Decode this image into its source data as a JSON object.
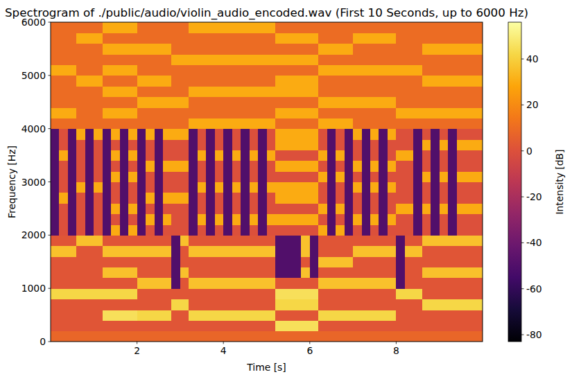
{
  "chart_data": {
    "type": "heatmap",
    "title": "Spectrogram of ./public/audio/violin_audio_encoded.wav (First 10 Seconds, up to 6000 Hz)",
    "x_label": "Time [s]",
    "y_label": "Frequency [Hz]",
    "xlim": [
      0,
      10
    ],
    "xticks": [
      2,
      4,
      6,
      8
    ],
    "ylim": [
      0,
      6000
    ],
    "yticks": [
      0,
      1000,
      2000,
      3000,
      4000,
      5000,
      6000
    ],
    "grid": false,
    "x_bins": [
      0,
      0.2,
      0.4,
      0.6,
      0.8,
      1,
      1.2,
      1.4,
      1.6,
      1.8,
      2,
      2.2,
      2.4,
      2.6,
      2.8,
      3,
      3.2,
      3.4,
      3.6,
      3.8,
      4,
      4.2,
      4.4,
      4.6,
      4.8,
      5,
      5.2,
      5.4,
      5.6,
      5.8,
      6,
      6.2,
      6.4,
      6.6,
      6.8,
      7,
      7.2,
      7.4,
      7.6,
      7.8,
      8,
      8.2,
      8.4,
      8.6,
      8.8,
      9,
      9.2,
      9.4,
      9.6,
      9.8,
      10
    ],
    "y_bins": [
      0,
      200,
      400,
      600,
      800,
      1000,
      1200,
      1400,
      1600,
      1800,
      2000,
      2200,
      2400,
      2600,
      2800,
      3000,
      3200,
      3400,
      3600,
      3800,
      4000,
      4200,
      4400,
      4600,
      4800,
      5000,
      5200,
      5400,
      5600,
      5800,
      6000
    ],
    "cells": [
      [
        8,
        8,
        8,
        8,
        8,
        8,
        8,
        8,
        8,
        8,
        8,
        8,
        8,
        8,
        8,
        8,
        8,
        8,
        8,
        8,
        8,
        8,
        8,
        8,
        8,
        8,
        8,
        8,
        8,
        8,
        8,
        8,
        8,
        8,
        8,
        8,
        8,
        8,
        8,
        8,
        8,
        8,
        8,
        8,
        8,
        8,
        8,
        8,
        8,
        8
      ],
      [
        2,
        2,
        2,
        2,
        2,
        2,
        2,
        2,
        2,
        2,
        2,
        2,
        2,
        2,
        2,
        2,
        2,
        2,
        2,
        2,
        2,
        2,
        2,
        2,
        2,
        2,
        45,
        45,
        45,
        45,
        45,
        2,
        2,
        2,
        2,
        2,
        2,
        2,
        2,
        2,
        2,
        2,
        2,
        2,
        2,
        2,
        2,
        2,
        2,
        2
      ],
      [
        2,
        2,
        2,
        2,
        2,
        2,
        45,
        45,
        45,
        45,
        42,
        42,
        42,
        42,
        2,
        2,
        42,
        42,
        42,
        42,
        42,
        42,
        42,
        42,
        42,
        42,
        2,
        2,
        2,
        2,
        2,
        42,
        42,
        42,
        42,
        42,
        42,
        42,
        42,
        42,
        2,
        2,
        2,
        2,
        2,
        2,
        2,
        2,
        2,
        2
      ],
      [
        2,
        2,
        2,
        2,
        2,
        2,
        2,
        2,
        2,
        2,
        2,
        2,
        2,
        2,
        42,
        42,
        2,
        2,
        2,
        2,
        2,
        2,
        2,
        2,
        2,
        2,
        42,
        42,
        42,
        42,
        42,
        2,
        2,
        2,
        2,
        2,
        2,
        2,
        2,
        2,
        2,
        2,
        2,
        42,
        42,
        42,
        42,
        42,
        42,
        42
      ],
      [
        42,
        42,
        42,
        42,
        42,
        42,
        42,
        42,
        42,
        42,
        2,
        2,
        2,
        2,
        2,
        2,
        2,
        2,
        2,
        2,
        2,
        2,
        2,
        2,
        2,
        2,
        45,
        45,
        45,
        45,
        45,
        2,
        2,
        2,
        2,
        2,
        2,
        2,
        2,
        2,
        42,
        42,
        42,
        2,
        2,
        2,
        2,
        2,
        2,
        2
      ],
      [
        2,
        2,
        2,
        2,
        2,
        2,
        2,
        2,
        2,
        2,
        36,
        36,
        36,
        36,
        -50,
        2,
        36,
        36,
        36,
        36,
        36,
        36,
        36,
        36,
        36,
        36,
        2,
        2,
        2,
        2,
        2,
        36,
        36,
        36,
        36,
        36,
        36,
        36,
        36,
        36,
        -50,
        2,
        2,
        2,
        2,
        2,
        2,
        2,
        2,
        2
      ],
      [
        2,
        2,
        2,
        2,
        2,
        2,
        36,
        36,
        36,
        36,
        2,
        2,
        2,
        2,
        -50,
        36,
        2,
        2,
        2,
        2,
        2,
        2,
        2,
        2,
        2,
        2,
        -50,
        -50,
        -50,
        36,
        -50,
        2,
        2,
        2,
        2,
        2,
        2,
        2,
        2,
        2,
        -50,
        2,
        2,
        36,
        36,
        36,
        36,
        36,
        36,
        36
      ],
      [
        2,
        2,
        2,
        2,
        2,
        2,
        2,
        2,
        2,
        2,
        2,
        2,
        2,
        2,
        -50,
        2,
        2,
        2,
        2,
        2,
        2,
        2,
        2,
        2,
        2,
        2,
        -50,
        -50,
        -50,
        2,
        -50,
        36,
        36,
        36,
        36,
        2,
        2,
        2,
        2,
        2,
        -50,
        2,
        2,
        2,
        2,
        2,
        2,
        2,
        2,
        2
      ],
      [
        36,
        36,
        36,
        2,
        2,
        2,
        36,
        36,
        36,
        36,
        36,
        36,
        36,
        36,
        -50,
        2,
        36,
        36,
        36,
        36,
        36,
        36,
        36,
        36,
        36,
        36,
        -50,
        -50,
        -50,
        36,
        -50,
        2,
        2,
        2,
        2,
        36,
        36,
        36,
        36,
        36,
        -50,
        36,
        36,
        2,
        2,
        2,
        2,
        2,
        2,
        2
      ],
      [
        2,
        2,
        2,
        36,
        36,
        36,
        2,
        2,
        2,
        2,
        2,
        2,
        2,
        2,
        -50,
        36,
        2,
        2,
        2,
        2,
        2,
        2,
        2,
        2,
        2,
        2,
        -50,
        -50,
        -50,
        36,
        -50,
        2,
        2,
        2,
        2,
        2,
        2,
        2,
        2,
        2,
        -50,
        2,
        2,
        36,
        36,
        36,
        36,
        36,
        36,
        36
      ],
      [
        -50,
        0,
        -50,
        0,
        -50,
        0,
        -50,
        30,
        -50,
        30,
        -50,
        0,
        -50,
        0,
        0,
        0,
        -50,
        0,
        -50,
        0,
        -50,
        0,
        -50,
        0,
        -50,
        0,
        0,
        0,
        0,
        0,
        0,
        30,
        -50,
        30,
        -50,
        0,
        -50,
        0,
        -50,
        0,
        0,
        0,
        -50,
        0,
        -50,
        0,
        -50,
        0,
        0,
        0
      ],
      [
        -50,
        0,
        -50,
        0,
        -50,
        0,
        -50,
        0,
        -50,
        0,
        -50,
        30,
        -50,
        30,
        0,
        0,
        -50,
        30,
        -50,
        30,
        -50,
        30,
        -50,
        30,
        -50,
        30,
        30,
        30,
        30,
        30,
        30,
        0,
        -50,
        0,
        -50,
        30,
        -50,
        30,
        -50,
        30,
        0,
        0,
        -50,
        0,
        -50,
        0,
        -50,
        0,
        0,
        0
      ],
      [
        -50,
        0,
        -50,
        0,
        -50,
        0,
        -50,
        30,
        -50,
        30,
        -50,
        0,
        -50,
        0,
        0,
        0,
        -50,
        0,
        -50,
        0,
        -50,
        0,
        -50,
        0,
        -50,
        0,
        0,
        0,
        0,
        0,
        0,
        30,
        -50,
        30,
        -50,
        0,
        -50,
        0,
        -50,
        0,
        30,
        30,
        -50,
        30,
        -50,
        30,
        -50,
        30,
        30,
        30
      ],
      [
        -50,
        30,
        -50,
        0,
        -50,
        0,
        -50,
        0,
        -50,
        0,
        -50,
        30,
        -50,
        30,
        30,
        30,
        -50,
        0,
        -50,
        0,
        -50,
        0,
        -50,
        0,
        -50,
        0,
        30,
        30,
        30,
        30,
        30,
        0,
        -50,
        0,
        -50,
        0,
        -50,
        0,
        -50,
        0,
        0,
        0,
        -50,
        0,
        -50,
        0,
        -50,
        0,
        0,
        0
      ],
      [
        -50,
        0,
        -50,
        30,
        -50,
        30,
        -50,
        0,
        -50,
        0,
        -50,
        0,
        -50,
        0,
        0,
        0,
        -50,
        30,
        -50,
        30,
        -50,
        30,
        -50,
        30,
        -50,
        30,
        30,
        30,
        30,
        30,
        30,
        0,
        -50,
        0,
        -50,
        30,
        -50,
        30,
        -50,
        30,
        0,
        0,
        -50,
        0,
        -50,
        0,
        -50,
        0,
        0,
        0
      ],
      [
        -50,
        0,
        -50,
        0,
        -50,
        0,
        -50,
        30,
        -50,
        30,
        -50,
        0,
        -50,
        0,
        0,
        0,
        -50,
        0,
        -50,
        0,
        -50,
        0,
        -50,
        0,
        -50,
        0,
        0,
        0,
        0,
        0,
        0,
        30,
        -50,
        30,
        -50,
        0,
        -50,
        0,
        -50,
        0,
        0,
        0,
        -50,
        30,
        -50,
        30,
        -50,
        30,
        30,
        30
      ],
      [
        -50,
        0,
        -50,
        0,
        -50,
        0,
        -50,
        0,
        -50,
        0,
        -50,
        30,
        -50,
        30,
        30,
        30,
        -50,
        0,
        -50,
        0,
        -50,
        0,
        -50,
        0,
        -50,
        0,
        30,
        30,
        30,
        30,
        30,
        0,
        -50,
        0,
        -50,
        30,
        -50,
        30,
        -50,
        30,
        0,
        0,
        -50,
        0,
        -50,
        0,
        -50,
        0,
        0,
        0
      ],
      [
        -50,
        30,
        -50,
        0,
        -50,
        0,
        -50,
        30,
        -50,
        30,
        -50,
        0,
        -50,
        0,
        0,
        0,
        -50,
        30,
        -50,
        30,
        -50,
        30,
        -50,
        30,
        -50,
        30,
        0,
        0,
        0,
        0,
        0,
        30,
        -50,
        30,
        -50,
        0,
        -50,
        0,
        -50,
        0,
        30,
        30,
        -50,
        0,
        -50,
        0,
        -50,
        0,
        0,
        0
      ],
      [
        -50,
        0,
        -50,
        0,
        -50,
        0,
        -50,
        0,
        -50,
        0,
        -50,
        0,
        -50,
        0,
        0,
        0,
        -50,
        0,
        -50,
        0,
        -50,
        0,
        -50,
        0,
        -50,
        0,
        30,
        30,
        30,
        30,
        30,
        0,
        -50,
        0,
        -50,
        0,
        -50,
        0,
        -50,
        0,
        0,
        0,
        -50,
        30,
        -50,
        30,
        -50,
        30,
        30,
        30
      ],
      [
        -50,
        0,
        -50,
        30,
        -50,
        30,
        -50,
        30,
        -50,
        30,
        -50,
        30,
        -50,
        30,
        30,
        30,
        -50,
        0,
        -50,
        0,
        -50,
        0,
        -50,
        0,
        -50,
        0,
        30,
        30,
        30,
        30,
        30,
        0,
        -50,
        0,
        -50,
        30,
        -50,
        30,
        -50,
        30,
        0,
        0,
        -50,
        0,
        -50,
        0,
        -50,
        0,
        0,
        0
      ],
      [
        10,
        10,
        10,
        10,
        10,
        10,
        10,
        10,
        10,
        10,
        10,
        10,
        10,
        10,
        10,
        10,
        30,
        30,
        30,
        30,
        30,
        30,
        30,
        30,
        30,
        30,
        10,
        10,
        10,
        10,
        10,
        30,
        30,
        30,
        30,
        10,
        10,
        10,
        10,
        10,
        10,
        10,
        10,
        10,
        10,
        10,
        10,
        10,
        10,
        10
      ],
      [
        30,
        30,
        30,
        10,
        10,
        10,
        30,
        30,
        30,
        30,
        10,
        10,
        10,
        10,
        10,
        10,
        10,
        10,
        10,
        10,
        10,
        10,
        10,
        10,
        10,
        10,
        30,
        30,
        30,
        30,
        30,
        10,
        10,
        10,
        10,
        10,
        10,
        10,
        10,
        10,
        30,
        30,
        30,
        30,
        30,
        30,
        30,
        30,
        30,
        30
      ],
      [
        10,
        10,
        10,
        10,
        10,
        10,
        10,
        10,
        10,
        10,
        30,
        30,
        30,
        30,
        30,
        30,
        10,
        10,
        10,
        10,
        10,
        10,
        10,
        10,
        10,
        10,
        10,
        10,
        10,
        10,
        10,
        30,
        30,
        30,
        30,
        30,
        30,
        30,
        30,
        30,
        10,
        10,
        10,
        10,
        10,
        10,
        10,
        10,
        10,
        10
      ],
      [
        10,
        10,
        10,
        10,
        10,
        10,
        30,
        30,
        30,
        30,
        10,
        10,
        10,
        10,
        10,
        10,
        30,
        30,
        30,
        30,
        30,
        30,
        30,
        30,
        30,
        30,
        30,
        30,
        30,
        30,
        30,
        10,
        10,
        10,
        10,
        10,
        10,
        10,
        10,
        10,
        10,
        10,
        10,
        10,
        10,
        10,
        10,
        10,
        10,
        10
      ],
      [
        10,
        10,
        10,
        30,
        30,
        30,
        10,
        10,
        10,
        10,
        30,
        30,
        30,
        30,
        10,
        10,
        10,
        10,
        10,
        10,
        10,
        10,
        10,
        10,
        10,
        10,
        30,
        30,
        30,
        30,
        30,
        10,
        10,
        10,
        10,
        10,
        10,
        10,
        10,
        10,
        10,
        10,
        10,
        30,
        30,
        30,
        30,
        30,
        30,
        30
      ],
      [
        30,
        30,
        30,
        10,
        10,
        10,
        30,
        30,
        30,
        30,
        10,
        10,
        10,
        10,
        10,
        10,
        10,
        10,
        10,
        10,
        10,
        10,
        10,
        10,
        10,
        10,
        10,
        10,
        10,
        10,
        10,
        30,
        30,
        30,
        30,
        30,
        30,
        30,
        30,
        30,
        30,
        30,
        30,
        10,
        10,
        10,
        10,
        10,
        10,
        10
      ],
      [
        10,
        10,
        10,
        10,
        10,
        10,
        10,
        10,
        10,
        10,
        10,
        10,
        10,
        10,
        30,
        30,
        30,
        30,
        30,
        30,
        30,
        30,
        30,
        30,
        30,
        30,
        30,
        30,
        30,
        30,
        30,
        10,
        10,
        10,
        10,
        10,
        10,
        10,
        10,
        10,
        10,
        10,
        10,
        10,
        10,
        10,
        10,
        10,
        10,
        10
      ],
      [
        10,
        10,
        10,
        10,
        10,
        10,
        30,
        30,
        30,
        30,
        30,
        30,
        30,
        30,
        10,
        10,
        10,
        10,
        10,
        10,
        10,
        10,
        10,
        10,
        10,
        10,
        10,
        10,
        10,
        10,
        10,
        30,
        30,
        30,
        30,
        10,
        10,
        10,
        10,
        10,
        10,
        10,
        10,
        30,
        30,
        30,
        30,
        30,
        30,
        30
      ],
      [
        10,
        10,
        10,
        30,
        30,
        30,
        10,
        10,
        10,
        10,
        10,
        10,
        10,
        10,
        10,
        10,
        10,
        10,
        10,
        10,
        10,
        10,
        10,
        10,
        10,
        10,
        30,
        30,
        30,
        30,
        30,
        10,
        10,
        10,
        10,
        30,
        30,
        30,
        30,
        30,
        10,
        10,
        10,
        10,
        10,
        10,
        10,
        10,
        10,
        10
      ],
      [
        10,
        10,
        10,
        10,
        10,
        10,
        30,
        30,
        30,
        30,
        10,
        10,
        10,
        10,
        10,
        10,
        30,
        30,
        30,
        30,
        30,
        30,
        30,
        30,
        30,
        30,
        10,
        10,
        10,
        10,
        10,
        10,
        10,
        10,
        10,
        10,
        10,
        10,
        10,
        10,
        10,
        10,
        10,
        10,
        10,
        10,
        10,
        10,
        10,
        10
      ]
    ],
    "colorbar": {
      "label": "Intensity [dB]",
      "range": [
        -83,
        56
      ],
      "ticks": [
        -80,
        -60,
        -40,
        -20,
        0,
        20,
        40
      ]
    }
  }
}
